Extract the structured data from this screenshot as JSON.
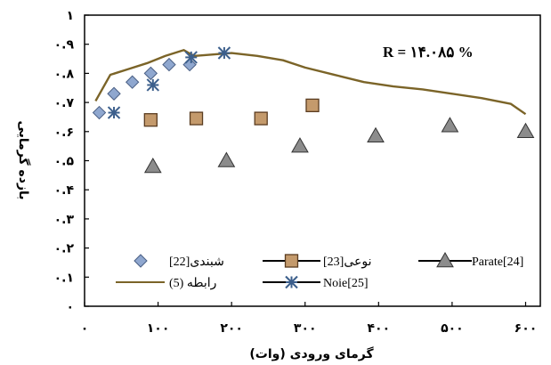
{
  "chart_data": {
    "type": "scatter",
    "xlabel": "گرمای ورودی (وات)",
    "ylabel": "بازده گرمایی",
    "xlim": [
      0,
      620
    ],
    "ylim": [
      0,
      1
    ],
    "x_ticks": [
      0,
      100,
      200,
      300,
      400,
      500,
      600
    ],
    "x_tick_labels": [
      "۰",
      "۱۰۰",
      "۲۰۰",
      "۳۰۰",
      "۴۰۰",
      "۵۰۰",
      "۶۰۰"
    ],
    "y_ticks": [
      0,
      0.1,
      0.2,
      0.3,
      0.4,
      0.5,
      0.6,
      0.7,
      0.8,
      0.9,
      1
    ],
    "y_tick_labels": [
      "۰",
      "۰.۱",
      "۰.۲",
      "۰.۳",
      "۰.۴",
      "۰.۵",
      "۰.۶",
      "۰.۷",
      "۰.۸",
      "۰.۹",
      "۱"
    ],
    "annotation": "R = ۱۴.۰۸۵  %",
    "grid": false,
    "legend_position": "bottom",
    "series": [
      {
        "name": "شبندی[22]",
        "marker": "diamond",
        "color": "#8fa7cf",
        "x": [
          20,
          40,
          65,
          90,
          115,
          143
        ],
        "y": [
          0.665,
          0.73,
          0.77,
          0.8,
          0.83,
          0.83
        ]
      },
      {
        "name": "نوعی[23]",
        "marker": "square",
        "color": "#c49a6c",
        "x": [
          90,
          152,
          240,
          310
        ],
        "y": [
          0.64,
          0.645,
          0.645,
          0.69
        ]
      },
      {
        "name": "Parate[24]",
        "marker": "triangle",
        "color": "#8c8c8c",
        "x": [
          93,
          193,
          293,
          396,
          497,
          600
        ],
        "y": [
          0.48,
          0.5,
          0.55,
          0.585,
          0.62,
          0.6
        ]
      },
      {
        "name": "رابطه (5)",
        "marker": "line",
        "color": "#7b6428",
        "x": [
          15,
          35,
          60,
          85,
          110,
          135,
          145,
          150,
          175,
          200,
          235,
          270,
          300,
          340,
          380,
          420,
          460,
          500,
          540,
          580,
          600
        ],
        "y": [
          0.705,
          0.795,
          0.815,
          0.835,
          0.86,
          0.88,
          0.865,
          0.86,
          0.865,
          0.87,
          0.86,
          0.845,
          0.82,
          0.795,
          0.77,
          0.755,
          0.745,
          0.73,
          0.715,
          0.695,
          0.66
        ]
      },
      {
        "name": "Noie[25]",
        "marker": "asterisk",
        "color": "#3c5f8c",
        "x": [
          40,
          93,
          145,
          190
        ],
        "y": [
          0.665,
          0.76,
          0.855,
          0.87
        ]
      }
    ]
  }
}
